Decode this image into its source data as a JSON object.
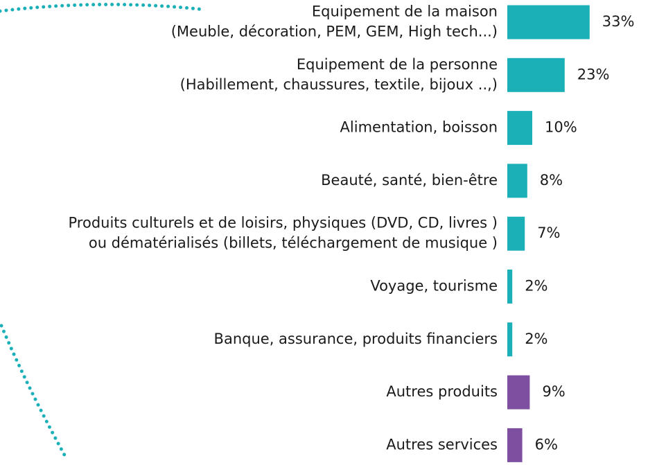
{
  "chart_data": {
    "type": "hbar",
    "categories": [
      "Equipement de la maison\n(Meuble, décoration, PEM, GEM, High tech...)",
      "Equipement de la personne\n(Habillement, chaussures, textile, bijoux ..,)",
      "Alimentation, boisson",
      "Beauté, santé, bien-être",
      "Produits culturels et de loisirs, physiques (DVD, CD, livres )\nou dématérialisés (billets, téléchargement de musique )",
      "Voyage, tourisme",
      "Banque, assurance, produits financiers",
      "Autres produits",
      "Autres services"
    ],
    "values": [
      33,
      23,
      10,
      8,
      7,
      2,
      2,
      9,
      6
    ],
    "value_labels": [
      "33%",
      "23%",
      "10%",
      "8%",
      "7%",
      "2%",
      "2%",
      "9%",
      "6%"
    ],
    "colors": [
      "#1bb0b8",
      "#1bb0b8",
      "#1bb0b8",
      "#1bb0b8",
      "#1bb0b8",
      "#1bb0b8",
      "#1bb0b8",
      "#7e4fa0",
      "#7e4fa0"
    ]
  }
}
